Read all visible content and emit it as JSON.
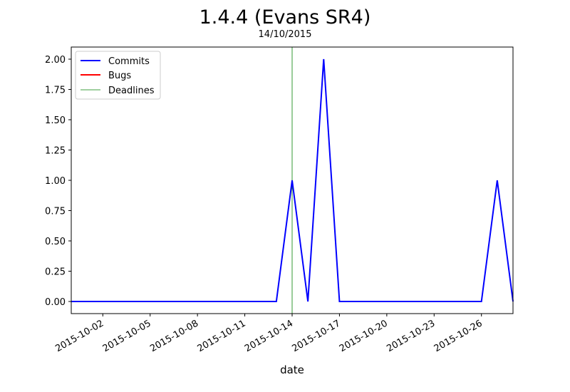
{
  "chart_data": {
    "type": "line",
    "title": "1.4.4 (Evans SR4)",
    "subtitle": "14/10/2015",
    "xlabel": "date",
    "ylabel": "",
    "x_start": "2015-09-30",
    "x_end": "2015-10-28",
    "ylim": [
      -0.1,
      2.1
    ],
    "x_ticks": [
      "2015-10-02",
      "2015-10-05",
      "2015-10-08",
      "2015-10-11",
      "2015-10-14",
      "2015-10-17",
      "2015-10-20",
      "2015-10-23",
      "2015-10-26"
    ],
    "y_ticks": [
      "0.00",
      "0.25",
      "0.50",
      "0.75",
      "1.00",
      "1.25",
      "1.50",
      "1.75",
      "2.00"
    ],
    "series": [
      {
        "name": "Commits",
        "color": "#0000ff",
        "points": [
          {
            "x": "2015-09-30",
            "y": 0
          },
          {
            "x": "2015-10-13",
            "y": 0
          },
          {
            "x": "2015-10-14",
            "y": 1
          },
          {
            "x": "2015-10-15",
            "y": 0
          },
          {
            "x": "2015-10-16",
            "y": 2
          },
          {
            "x": "2015-10-17",
            "y": 0
          },
          {
            "x": "2015-10-26",
            "y": 0
          },
          {
            "x": "2015-10-27",
            "y": 1
          },
          {
            "x": "2015-10-28",
            "y": 0
          }
        ]
      },
      {
        "name": "Bugs",
        "color": "#ff0000",
        "points": []
      }
    ],
    "deadlines": {
      "name": "Deadlines",
      "color": "#008000",
      "dates": [
        "2015-10-14"
      ]
    },
    "legend": {
      "placement": "top-left",
      "entries": [
        "Commits",
        "Bugs",
        "Deadlines"
      ]
    },
    "grid": false
  }
}
